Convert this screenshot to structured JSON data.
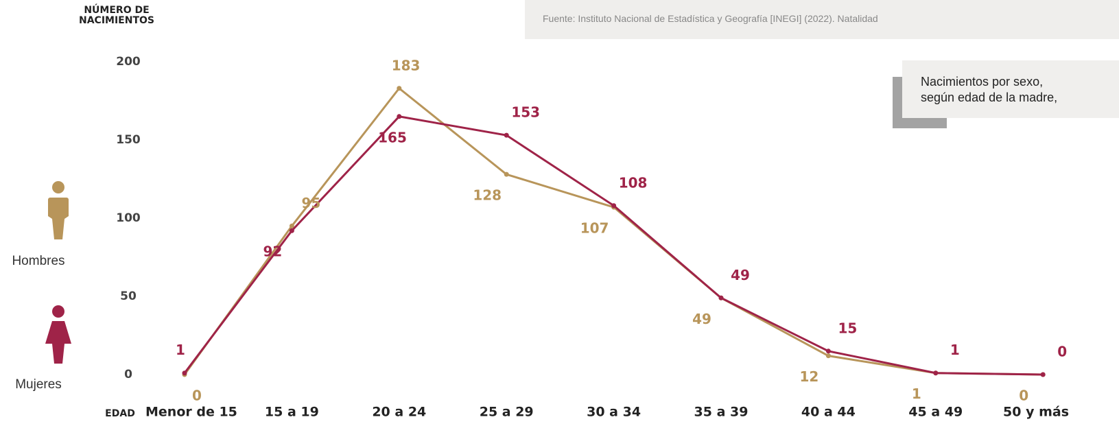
{
  "chart_data": {
    "type": "line",
    "title": "Nacimientos por sexo, según edad de la madre,",
    "source": "Fuente:  Instituto Nacional de Estadística y Geografía [INEGI] (2022). Natalidad",
    "y_label": "NÚMERO DE NACIMIENTOS",
    "x_label": "EDAD",
    "categories": [
      "Menor de 15",
      "15 a 19",
      "20 a 24",
      "25 a 29",
      "30 a 34",
      "35 a 39",
      "40 a 44",
      "45 a 49",
      "50  y más"
    ],
    "series": [
      {
        "name": "Hombres",
        "color": "#b8955a",
        "values": [
          0,
          95,
          183,
          128,
          107,
          49,
          12,
          1,
          0
        ]
      },
      {
        "name": "Mujeres",
        "color": "#9f2348",
        "values": [
          1,
          92,
          165,
          153,
          108,
          49,
          15,
          1,
          0
        ]
      }
    ],
    "ylim": [
      0,
      200
    ],
    "yticks": [
      0,
      50,
      100,
      150,
      200
    ],
    "grid": false
  }
}
